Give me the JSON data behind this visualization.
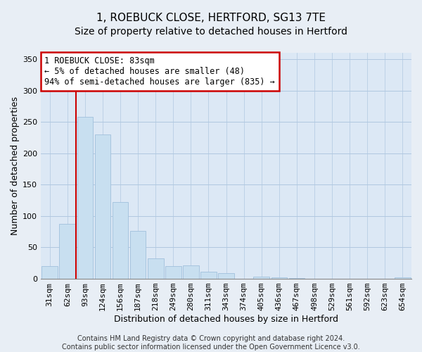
{
  "title": "1, ROEBUCK CLOSE, HERTFORD, SG13 7TE",
  "subtitle": "Size of property relative to detached houses in Hertford",
  "xlabel": "Distribution of detached houses by size in Hertford",
  "ylabel": "Number of detached properties",
  "categories": [
    "31sqm",
    "62sqm",
    "93sqm",
    "124sqm",
    "156sqm",
    "187sqm",
    "218sqm",
    "249sqm",
    "280sqm",
    "311sqm",
    "343sqm",
    "374sqm",
    "405sqm",
    "436sqm",
    "467sqm",
    "498sqm",
    "529sqm",
    "561sqm",
    "592sqm",
    "623sqm",
    "654sqm"
  ],
  "values": [
    20,
    87,
    258,
    230,
    122,
    76,
    33,
    20,
    21,
    11,
    9,
    0,
    4,
    2,
    1,
    0,
    0,
    0,
    0,
    0,
    2
  ],
  "bar_color": "#c8dff0",
  "bar_edge_color": "#a0c0dc",
  "marker_bin_index": 2,
  "marker_color": "#cc0000",
  "annotation_line1": "1 ROEBUCK CLOSE: 83sqm",
  "annotation_line2": "← 5% of detached houses are smaller (48)",
  "annotation_line3": "94% of semi-detached houses are larger (835) →",
  "annotation_box_color": "#ffffff",
  "annotation_box_edge": "#cc0000",
  "ylim": [
    0,
    360
  ],
  "yticks": [
    0,
    50,
    100,
    150,
    200,
    250,
    300,
    350
  ],
  "footer_text": "Contains HM Land Registry data © Crown copyright and database right 2024.\nContains public sector information licensed under the Open Government Licence v3.0.",
  "title_fontsize": 11,
  "subtitle_fontsize": 10,
  "label_fontsize": 9,
  "tick_fontsize": 8,
  "annotation_fontsize": 8.5,
  "footer_fontsize": 7,
  "bg_color": "#e8eef5",
  "plot_bg_color": "#dce8f5",
  "grid_color": "#b0c8e0"
}
